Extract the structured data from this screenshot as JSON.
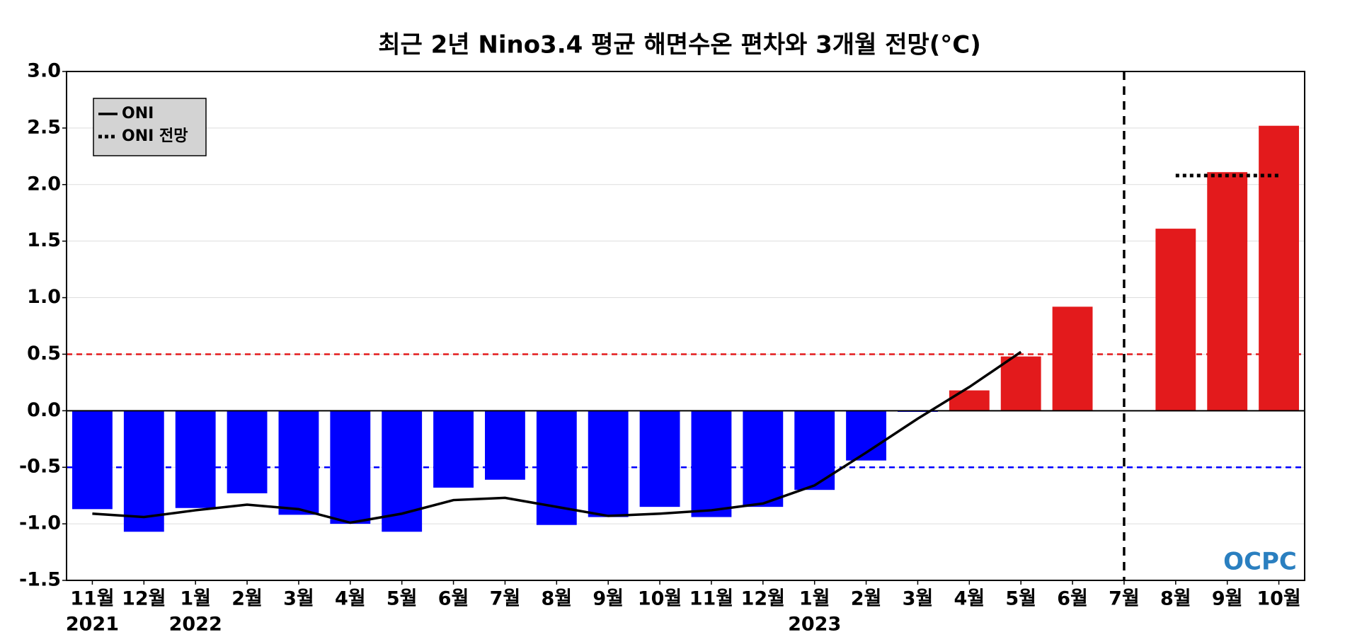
{
  "chart_data": {
    "type": "bar",
    "title": "최근 2년 Nino3.4 평균 해면수온 편차와 3개월 전망(°C)",
    "categories": [
      "11월",
      "12월",
      "1월",
      "2월",
      "3월",
      "4월",
      "5월",
      "6월",
      "7월",
      "8월",
      "9월",
      "10월",
      "11월",
      "12월",
      "1월",
      "2월",
      "3월",
      "4월",
      "5월",
      "6월",
      "7월",
      "8월",
      "9월",
      "10월"
    ],
    "x_sublabels": [
      "2021",
      null,
      "2022",
      null,
      null,
      null,
      null,
      null,
      null,
      null,
      null,
      null,
      null,
      null,
      "2023",
      null,
      null,
      null,
      null,
      null,
      null,
      null,
      null,
      null
    ],
    "values": [
      -0.87,
      -1.07,
      -0.86,
      -0.73,
      -0.92,
      -1.0,
      -1.07,
      -0.68,
      -0.61,
      -1.01,
      -0.94,
      -0.85,
      -0.94,
      -0.85,
      -0.7,
      -0.44,
      -0.01,
      0.18,
      0.48,
      0.92,
      null,
      1.61,
      2.11,
      2.52
    ],
    "colors": {
      "positive": "#e31a1c",
      "negative": "#0000ff"
    },
    "series": [
      {
        "name": "ONI",
        "color": "#000000",
        "style": "solid",
        "values": [
          -0.91,
          -0.94,
          -0.88,
          -0.83,
          -0.87,
          -0.99,
          -0.91,
          -0.79,
          -0.77,
          -0.85,
          -0.93,
          -0.91,
          -0.88,
          -0.82,
          -0.66,
          -0.37,
          -0.07,
          0.21,
          0.52,
          null,
          null,
          null,
          null,
          null
        ]
      },
      {
        "name": "ONI 전망",
        "color": "#000000",
        "style": "dotted",
        "values": [
          null,
          null,
          null,
          null,
          null,
          null,
          null,
          null,
          null,
          null,
          null,
          null,
          null,
          null,
          null,
          null,
          null,
          null,
          null,
          null,
          null,
          2.08,
          2.08,
          2.08
        ]
      }
    ],
    "hlines": [
      {
        "value": 0.5,
        "color": "#e31a1c"
      },
      {
        "value": -0.5,
        "color": "#0000ff"
      }
    ],
    "vline_index": 20,
    "ylim": [
      -1.5,
      3.0
    ],
    "yticks": [
      {
        "value": -1.5,
        "label": "-1.5"
      },
      {
        "value": -1.0,
        "label": "-1.0"
      },
      {
        "value": -0.5,
        "label": "-0.5"
      },
      {
        "value": 0,
        "label": "0.0"
      },
      {
        "value": 0.5,
        "label": "0.5"
      },
      {
        "value": 1.0,
        "label": "1.0"
      },
      {
        "value": 1.5,
        "label": "1.5"
      },
      {
        "value": 2.0,
        "label": "2.0"
      },
      {
        "value": 2.5,
        "label": "2.5"
      },
      {
        "value": 3.0,
        "label": "3.0"
      }
    ],
    "grid": true,
    "legend": "upper left",
    "logo": "OCPC"
  }
}
